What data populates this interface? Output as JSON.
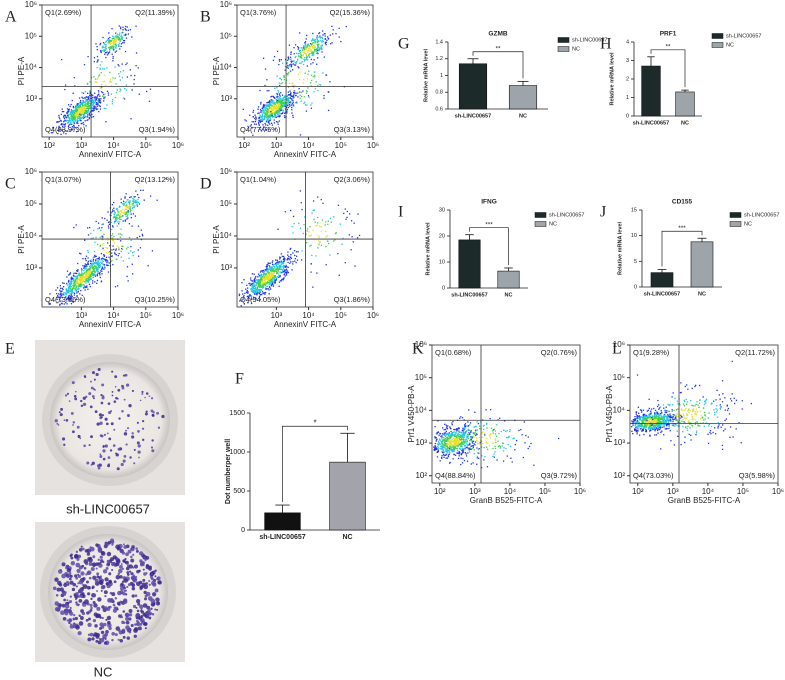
{
  "chart_data": [
    {
      "type": "flow",
      "panel_label": "A",
      "x_label": "AnnexinV FITC-A",
      "y_label": "PI PE-A",
      "log_scale": true,
      "xlim": [
        60,
        1000000
      ],
      "ylim": [
        60,
        1000000
      ],
      "xticks": [
        {
          "value": 100,
          "label": "10²"
        },
        {
          "value": 1000,
          "label": "10³"
        },
        {
          "value": 10000,
          "label": "10⁴"
        },
        {
          "value": 100000,
          "label": "10⁵"
        },
        {
          "value": 1000000,
          "label": "10⁶"
        }
      ],
      "yticks": [
        {
          "value": 1000,
          "label": "10³"
        },
        {
          "value": 10000,
          "label": "10⁴"
        },
        {
          "value": 100000,
          "label": "10⁵"
        },
        {
          "value": 1000000,
          "label": "10⁶"
        }
      ],
      "gate": {
        "x": 2000,
        "y": 2500
      },
      "quadrant_labels": [
        "Q1(2.69%)",
        "Q2(11.39%)",
        "Q3(1.94%)",
        "Q4(83.97%)"
      ]
    },
    {
      "type": "flow",
      "panel_label": "B",
      "x_label": "AnnexinV FITC-A",
      "y_label": "PI PE-A",
      "log_scale": true,
      "xlim": [
        60,
        1000000
      ],
      "ylim": [
        60,
        1000000
      ],
      "xticks": [
        {
          "value": 100,
          "label": "10²"
        },
        {
          "value": 1000,
          "label": "10³"
        },
        {
          "value": 10000,
          "label": "10⁴"
        },
        {
          "value": 100000,
          "label": "10⁵"
        },
        {
          "value": 1000000,
          "label": "10⁶"
        }
      ],
      "yticks": [
        {
          "value": 1000,
          "label": "10³"
        },
        {
          "value": 10000,
          "label": "10⁴"
        },
        {
          "value": 100000,
          "label": "10⁵"
        },
        {
          "value": 1000000,
          "label": "10⁶"
        }
      ],
      "gate": {
        "x": 2000,
        "y": 2500
      },
      "quadrant_labels": [
        "Q1(3.76%)",
        "Q2(15.36%)",
        "Q3(3.13%)",
        "Q4(77.75%)"
      ]
    },
    {
      "type": "flow",
      "panel_label": "C",
      "x_label": "AnnexinV FITC-A",
      "y_label": "PI PE-A",
      "log_scale": true,
      "xlim": [
        60,
        1000000
      ],
      "ylim": [
        60,
        1000000
      ],
      "xticks": [
        {
          "value": 1000,
          "label": "10³"
        },
        {
          "value": 10000,
          "label": "10⁴"
        },
        {
          "value": 100000,
          "label": "10⁵"
        },
        {
          "value": 1000000,
          "label": "10⁶"
        }
      ],
      "yticks": [
        {
          "value": 1000,
          "label": "10³"
        },
        {
          "value": 10000,
          "label": "10⁴"
        },
        {
          "value": 100000,
          "label": "10⁵"
        },
        {
          "value": 1000000,
          "label": "10⁶"
        }
      ],
      "gate": {
        "x": 8000,
        "y": 8000
      },
      "quadrant_labels": [
        "Q1(3.07%)",
        "Q2(13.12%)",
        "Q3(10.25%)",
        "Q4(73.56%)"
      ]
    },
    {
      "type": "flow",
      "panel_label": "D",
      "x_label": "AnnexinV FITC-A",
      "y_label": "PI PE-A",
      "log_scale": true,
      "xlim": [
        60,
        1000000
      ],
      "ylim": [
        60,
        1000000
      ],
      "xticks": [
        {
          "value": 1000,
          "label": "10³"
        },
        {
          "value": 10000,
          "label": "10⁴"
        },
        {
          "value": 100000,
          "label": "10⁵"
        },
        {
          "value": 1000000,
          "label": "10⁶"
        }
      ],
      "yticks": [
        {
          "value": 1000,
          "label": "10³"
        },
        {
          "value": 10000,
          "label": "10⁴"
        },
        {
          "value": 100000,
          "label": "10⁵"
        },
        {
          "value": 1000000,
          "label": "10⁶"
        }
      ],
      "gate": {
        "x": 8000,
        "y": 8000
      },
      "quadrant_labels": [
        "Q1(1.04%)",
        "Q2(3.06%)",
        "Q3(1.86%)",
        "Q4(94.05%)"
      ]
    },
    {
      "type": "bar",
      "panel_label": "F",
      "y_label": "Dot numberper well",
      "categories": [
        "sh-LINC00657",
        "NC"
      ],
      "values": [
        220,
        870
      ],
      "errors": [
        100,
        370
      ],
      "colors": [
        "#111111",
        "#a3a3ab"
      ],
      "significance": "*",
      "ylim": [
        0,
        1500
      ],
      "yticks": [
        0,
        500,
        1000,
        1500
      ]
    },
    {
      "type": "bar",
      "panel_label": "G",
      "title": "GZMB",
      "y_label": "Relative mRNA level",
      "categories": [
        "sh-LINC00657",
        "NC"
      ],
      "values": [
        1.14,
        0.88
      ],
      "errors": [
        0.06,
        0.05
      ],
      "colors": [
        "#1c2b29",
        "#9ea5aa"
      ],
      "significance": "**",
      "legend": true,
      "ylim": [
        0.6,
        1.4
      ],
      "yticks": [
        0.6,
        0.8,
        1.0,
        1.2,
        1.4
      ]
    },
    {
      "type": "bar",
      "panel_label": "H",
      "title": "PRF1",
      "y_label": "Relative mRNA level",
      "categories": [
        "sh-LINC00657",
        "NC"
      ],
      "values": [
        2.7,
        1.3
      ],
      "errors": [
        0.5,
        0.1
      ],
      "colors": [
        "#1c2b29",
        "#9ea5aa"
      ],
      "significance": "**",
      "legend": true,
      "ylim": [
        0,
        4
      ],
      "yticks": [
        0,
        1,
        2,
        3,
        4
      ]
    },
    {
      "type": "bar",
      "panel_label": "I",
      "title": "IFNG",
      "y_label": "Relative mRNA level",
      "categories": [
        "sh-LINC00657",
        "NC"
      ],
      "values": [
        18.5,
        6.5
      ],
      "errors": [
        2,
        1.2
      ],
      "colors": [
        "#1c2b29",
        "#9ea5aa"
      ],
      "significance": "***",
      "legend": true,
      "ylim": [
        0,
        30
      ],
      "yticks": [
        0,
        10,
        20,
        30
      ]
    },
    {
      "type": "bar",
      "panel_label": "J",
      "title": "CD155",
      "y_label": "Relative mRNA level",
      "categories": [
        "sh-LINC00657",
        "NC"
      ],
      "values": [
        2.8,
        8.8
      ],
      "errors": [
        0.6,
        0.7
      ],
      "colors": [
        "#1c2b29",
        "#9ea5aa"
      ],
      "significance": "***",
      "legend": true,
      "ylim": [
        0,
        15
      ],
      "yticks": [
        0,
        5,
        10,
        15
      ]
    },
    {
      "type": "flow",
      "panel_label": "K",
      "x_label": "GranB B525-FITC-A",
      "y_label": "Prf1 V450-PB-A",
      "log_scale": true,
      "xlim": [
        60,
        1000000
      ],
      "ylim": [
        60,
        1000000
      ],
      "xticks": [
        {
          "value": 100,
          "label": "10²"
        },
        {
          "value": 1000,
          "label": "10³"
        },
        {
          "value": 10000,
          "label": "10⁴"
        },
        {
          "value": 100000,
          "label": "10⁵"
        },
        {
          "value": 1000000,
          "label": "10⁶"
        }
      ],
      "yticks": [
        {
          "value": 100,
          "label": "10²"
        },
        {
          "value": 1000,
          "label": "10³"
        },
        {
          "value": 10000,
          "label": "10⁴"
        },
        {
          "value": 100000,
          "label": "10⁵"
        },
        {
          "value": 1000000,
          "label": "10⁶"
        }
      ],
      "gate": {
        "x": 1500,
        "y": 5000
      },
      "quadrant_labels": [
        "Q1(0.68%)",
        "Q2(0.76%)",
        "Q3(9.72%)",
        "Q4(88.84%)"
      ]
    },
    {
      "type": "flow",
      "panel_label": "L",
      "x_label": "GranB B525-FITC-A",
      "y_label": "Prf1 V450-PB-A",
      "log_scale": true,
      "xlim": [
        60,
        1000000
      ],
      "ylim": [
        60,
        1000000
      ],
      "xticks": [
        {
          "value": 100,
          "label": "10²"
        },
        {
          "value": 1000,
          "label": "10³"
        },
        {
          "value": 10000,
          "label": "10⁴"
        },
        {
          "value": 100000,
          "label": "10⁵"
        },
        {
          "value": 1000000,
          "label": "10⁶"
        }
      ],
      "yticks": [
        {
          "value": 100,
          "label": "10²"
        },
        {
          "value": 1000,
          "label": "10³"
        },
        {
          "value": 10000,
          "label": "10⁴"
        },
        {
          "value": 100000,
          "label": "10⁵"
        },
        {
          "value": 1000000,
          "label": "10⁶"
        }
      ],
      "gate": {
        "x": 1500,
        "y": 4000
      },
      "quadrant_labels": [
        "Q1(9.28%)",
        "Q2(11.72%)",
        "Q3(5.98%)",
        "Q4(73.03%)"
      ]
    }
  ],
  "colony_panel": {
    "panel_label": "E",
    "captions": [
      "sh-LINC00657",
      "NC"
    ]
  }
}
